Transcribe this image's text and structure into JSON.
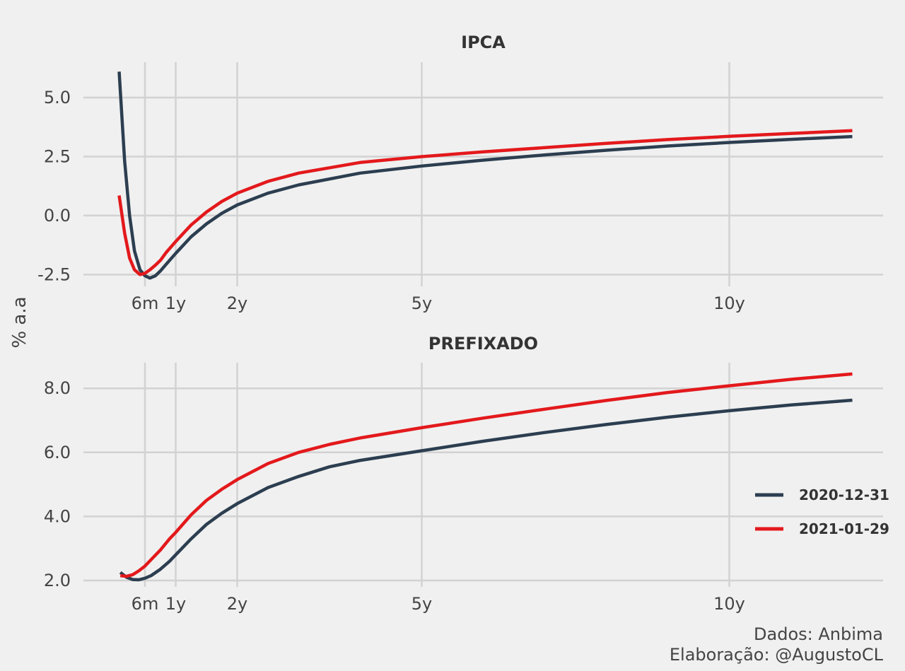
{
  "ylabel": "% a.a",
  "caption": {
    "line1": "Dados: Anbima",
    "line2": "Elaboração: @AugustoCL"
  },
  "legend": {
    "position": "right",
    "items": [
      {
        "label": "2020-12-31",
        "color": "#2c3e50"
      },
      {
        "label": "2021-01-29",
        "color": "#e3191c"
      }
    ]
  },
  "chart_data": [
    {
      "type": "line",
      "title": "IPCA",
      "xlabel": "",
      "ylabel": "% a.a",
      "x_ticks": [
        {
          "value": 0.5,
          "label": "6m"
        },
        {
          "value": 1,
          "label": "1y"
        },
        {
          "value": 2,
          "label": "2y"
        },
        {
          "value": 5,
          "label": "5y"
        },
        {
          "value": 10,
          "label": "10y"
        }
      ],
      "y_ticks": [
        {
          "value": -2.5,
          "label": "-2.5"
        },
        {
          "value": 0,
          "label": "0.0"
        },
        {
          "value": 2.5,
          "label": "2.5"
        },
        {
          "value": 5,
          "label": "5.0"
        }
      ],
      "xlim": [
        -0.5,
        12.5
      ],
      "ylim": [
        -3.0,
        6.5
      ],
      "grid": true,
      "series": [
        {
          "name": "2020-12-31",
          "color": "#2c3e50",
          "points": [
            [
              0.08,
              6.1
            ],
            [
              0.17,
              2.3
            ],
            [
              0.25,
              0.0
            ],
            [
              0.33,
              -1.5
            ],
            [
              0.42,
              -2.3
            ],
            [
              0.5,
              -2.55
            ],
            [
              0.58,
              -2.65
            ],
            [
              0.67,
              -2.55
            ],
            [
              0.75,
              -2.35
            ],
            [
              0.85,
              -2.05
            ],
            [
              1.0,
              -1.6
            ],
            [
              1.25,
              -0.9
            ],
            [
              1.5,
              -0.35
            ],
            [
              1.75,
              0.1
            ],
            [
              2.0,
              0.45
            ],
            [
              2.5,
              0.95
            ],
            [
              3.0,
              1.3
            ],
            [
              4.0,
              1.8
            ],
            [
              5.0,
              2.1
            ],
            [
              6.0,
              2.35
            ],
            [
              7.0,
              2.57
            ],
            [
              8.0,
              2.77
            ],
            [
              9.0,
              2.95
            ],
            [
              10.0,
              3.1
            ],
            [
              11.0,
              3.23
            ],
            [
              12.0,
              3.35
            ]
          ]
        },
        {
          "name": "2021-01-29",
          "color": "#e3191c",
          "points": [
            [
              0.08,
              0.85
            ],
            [
              0.17,
              -0.75
            ],
            [
              0.25,
              -1.8
            ],
            [
              0.33,
              -2.3
            ],
            [
              0.42,
              -2.5
            ],
            [
              0.5,
              -2.45
            ],
            [
              0.58,
              -2.3
            ],
            [
              0.67,
              -2.1
            ],
            [
              0.75,
              -1.9
            ],
            [
              0.85,
              -1.55
            ],
            [
              1.0,
              -1.1
            ],
            [
              1.25,
              -0.4
            ],
            [
              1.5,
              0.15
            ],
            [
              1.75,
              0.6
            ],
            [
              2.0,
              0.95
            ],
            [
              2.5,
              1.45
            ],
            [
              3.0,
              1.8
            ],
            [
              4.0,
              2.25
            ],
            [
              5.0,
              2.5
            ],
            [
              6.0,
              2.7
            ],
            [
              7.0,
              2.88
            ],
            [
              8.0,
              3.06
            ],
            [
              9.0,
              3.22
            ],
            [
              10.0,
              3.36
            ],
            [
              11.0,
              3.48
            ],
            [
              12.0,
              3.6
            ]
          ]
        }
      ]
    },
    {
      "type": "line",
      "title": "PREFIXADO",
      "xlabel": "",
      "ylabel": "% a.a",
      "x_ticks": [
        {
          "value": 0.5,
          "label": "6m"
        },
        {
          "value": 1,
          "label": "1y"
        },
        {
          "value": 2,
          "label": "2y"
        },
        {
          "value": 5,
          "label": "5y"
        },
        {
          "value": 10,
          "label": "10y"
        }
      ],
      "y_ticks": [
        {
          "value": 2,
          "label": "2.0"
        },
        {
          "value": 4,
          "label": "4.0"
        },
        {
          "value": 6,
          "label": "6.0"
        },
        {
          "value": 8,
          "label": "8.0"
        }
      ],
      "xlim": [
        -0.5,
        12.5
      ],
      "ylim": [
        1.8,
        8.8
      ],
      "grid": true,
      "series": [
        {
          "name": "2020-12-31",
          "color": "#2c3e50",
          "points": [
            [
              0.1,
              2.25
            ],
            [
              0.2,
              2.1
            ],
            [
              0.3,
              2.03
            ],
            [
              0.4,
              2.02
            ],
            [
              0.5,
              2.07
            ],
            [
              0.6,
              2.15
            ],
            [
              0.75,
              2.35
            ],
            [
              0.9,
              2.6
            ],
            [
              1.0,
              2.8
            ],
            [
              1.25,
              3.3
            ],
            [
              1.5,
              3.75
            ],
            [
              1.75,
              4.1
            ],
            [
              2.0,
              4.4
            ],
            [
              2.5,
              4.9
            ],
            [
              3.0,
              5.25
            ],
            [
              3.5,
              5.55
            ],
            [
              4.0,
              5.75
            ],
            [
              5.0,
              6.05
            ],
            [
              6.0,
              6.35
            ],
            [
              7.0,
              6.62
            ],
            [
              8.0,
              6.87
            ],
            [
              9.0,
              7.1
            ],
            [
              10.0,
              7.3
            ],
            [
              11.0,
              7.48
            ],
            [
              12.0,
              7.63
            ]
          ]
        },
        {
          "name": "2021-01-29",
          "color": "#e3191c",
          "points": [
            [
              0.1,
              2.15
            ],
            [
              0.2,
              2.13
            ],
            [
              0.3,
              2.18
            ],
            [
              0.4,
              2.3
            ],
            [
              0.5,
              2.45
            ],
            [
              0.6,
              2.65
            ],
            [
              0.75,
              2.95
            ],
            [
              0.9,
              3.3
            ],
            [
              1.0,
              3.5
            ],
            [
              1.25,
              4.05
            ],
            [
              1.5,
              4.5
            ],
            [
              1.75,
              4.85
            ],
            [
              2.0,
              5.15
            ],
            [
              2.5,
              5.65
            ],
            [
              3.0,
              6.0
            ],
            [
              3.5,
              6.25
            ],
            [
              4.0,
              6.45
            ],
            [
              5.0,
              6.77
            ],
            [
              6.0,
              7.07
            ],
            [
              7.0,
              7.35
            ],
            [
              8.0,
              7.62
            ],
            [
              9.0,
              7.87
            ],
            [
              10.0,
              8.08
            ],
            [
              11.0,
              8.28
            ],
            [
              12.0,
              8.45
            ]
          ]
        }
      ]
    }
  ]
}
